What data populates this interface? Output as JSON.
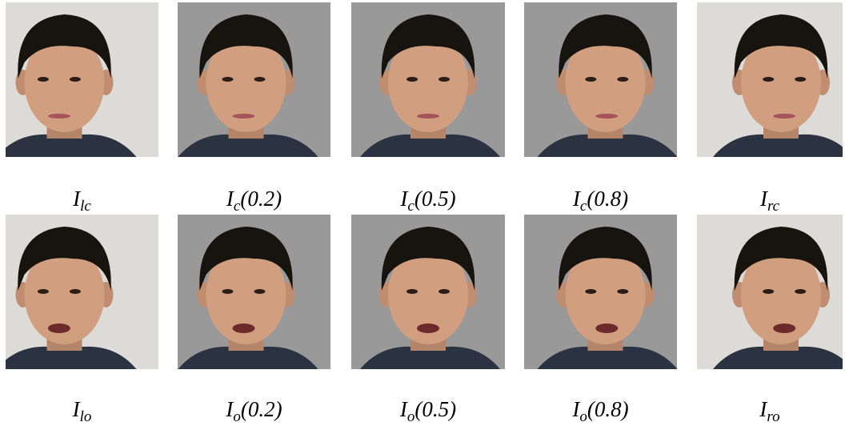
{
  "rows": [
    [
      {
        "base": "I",
        "sub": "lc"
      },
      {
        "base": "I",
        "sub": "c",
        "suffix": "(0.2)"
      },
      {
        "base": "I",
        "sub": "c",
        "suffix": "(0.5)"
      },
      {
        "base": "I",
        "sub": "c",
        "suffix": "(0.8)"
      },
      {
        "base": "I",
        "sub": "rc"
      }
    ],
    [
      {
        "base": "I",
        "sub": "lo"
      },
      {
        "base": "I",
        "sub": "o",
        "suffix": "(0.2)"
      },
      {
        "base": "I",
        "sub": "o",
        "suffix": "(0.5)"
      },
      {
        "base": "I",
        "sub": "o",
        "suffix": "(0.8)"
      },
      {
        "base": "I",
        "sub": "ro"
      }
    ]
  ]
}
